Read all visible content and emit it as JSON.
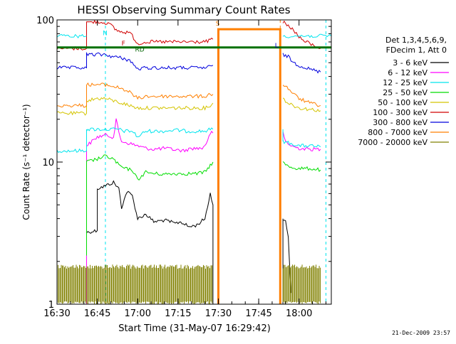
{
  "chart_data": {
    "type": "line",
    "title": "HESSI Observing Summary Count Rates",
    "xlabel": "Start Time (31-May-07 16:29:42)",
    "ylabel": "Count Rate (s⁻¹ detector⁻¹)",
    "y_scale": "log",
    "ylim": [
      1,
      100
    ],
    "xlim_minutes": [
      0,
      102
    ],
    "x_tick_labels": [
      "16:30",
      "16:45",
      "17:00",
      "17:15",
      "17:30",
      "17:45",
      "18:00"
    ],
    "x_tick_minutes": [
      0,
      15,
      30,
      45,
      60,
      75,
      90
    ],
    "y_tick_labels": [
      "1",
      "10",
      "100"
    ],
    "y_tick_values": [
      1,
      10,
      100
    ],
    "timestamp": "21-Dec-2009 23:57",
    "legend_header": [
      "Det 1,3,4,5,6,9,",
      "FDecim 1, Att 0"
    ],
    "flag_labels": [
      {
        "text": "N",
        "minute": 17,
        "level": 78,
        "color": "#00e5ee"
      },
      {
        "text": "F",
        "minute": 24,
        "level": 66,
        "color": "#c00000"
      },
      {
        "text": "RD",
        "minute": 29,
        "level": 60,
        "color": "#006400"
      },
      {
        "text": "S",
        "minute": 59,
        "level": 91,
        "color": "#ff7f00"
      },
      {
        "text": "L",
        "minute": 81,
        "level": 64,
        "color": "#0000cc"
      }
    ],
    "series": [
      {
        "name": "3 - 6 keV",
        "color": "#000000",
        "segments": [
          {
            "points": [
              [
                11,
                1
              ],
              [
                11,
                3.2
              ],
              [
                15,
                3.3
              ],
              [
                15,
                6.5
              ],
              [
                18,
                6.8
              ],
              [
                21,
                7.2
              ],
              [
                23,
                6.5
              ],
              [
                24,
                4.8
              ],
              [
                26,
                6.2
              ],
              [
                28,
                5.8
              ],
              [
                30,
                4.0
              ],
              [
                33,
                4.3
              ],
              [
                36,
                3.8
              ],
              [
                40,
                3.9
              ],
              [
                44,
                3.7
              ],
              [
                46,
                3.8
              ],
              [
                49,
                3.5
              ],
              [
                52,
                3.6
              ],
              [
                55,
                4.0
              ],
              [
                57,
                6.0
              ],
              [
                58,
                5.0
              ],
              [
                58,
                1
              ]
            ]
          },
          {
            "points": [
              [
                84,
                1
              ],
              [
                84,
                4.0
              ],
              [
                85,
                3.8
              ],
              [
                86,
                3.0
              ],
              [
                87,
                1.2
              ]
            ]
          }
        ]
      },
      {
        "name": "6 - 12 keV",
        "color": "#ff00ff",
        "segments": [
          {
            "points": [
              [
                11,
                1
              ],
              [
                11,
                13
              ],
              [
                15,
                15
              ],
              [
                18,
                15.5
              ],
              [
                21,
                15
              ],
              [
                22,
                20
              ],
              [
                23,
                16
              ],
              [
                24,
                14
              ],
              [
                27,
                13.5
              ],
              [
                30,
                13
              ],
              [
                33,
                12.5
              ],
              [
                36,
                12.3
              ],
              [
                40,
                12.5
              ],
              [
                44,
                12.2
              ],
              [
                47,
                12
              ],
              [
                50,
                12.5
              ],
              [
                54,
                12.5
              ],
              [
                56,
                14
              ],
              [
                57,
                16
              ],
              [
                58,
                16
              ]
            ]
          },
          {
            "points": [
              [
                84,
                16
              ],
              [
                85,
                14
              ],
              [
                87,
                13
              ],
              [
                90,
                12.5
              ],
              [
                94,
                12.3
              ],
              [
                98,
                12.3
              ]
            ]
          }
        ]
      },
      {
        "name": "12 - 25 keV",
        "color": "#00e5ee",
        "segments": [
          {
            "points": [
              [
                0,
                1
              ],
              [
                0,
                12
              ],
              [
                11,
                12
              ],
              [
                11,
                17
              ],
              [
                15,
                17
              ],
              [
                18,
                17
              ],
              [
                21,
                17
              ],
              [
                23,
                17
              ],
              [
                25,
                16.5
              ],
              [
                28,
                16.5
              ],
              [
                30,
                15
              ],
              [
                33,
                16.5
              ],
              [
                36,
                16.5
              ],
              [
                40,
                16.5
              ],
              [
                44,
                16.8
              ],
              [
                48,
                16.5
              ],
              [
                52,
                16.5
              ],
              [
                55,
                16.5
              ],
              [
                57,
                17
              ],
              [
                58,
                17
              ]
            ]
          },
          {
            "points": [
              [
                84,
                17
              ],
              [
                84,
                14
              ],
              [
                87,
                13.5
              ],
              [
                90,
                13
              ],
              [
                94,
                13
              ],
              [
                98,
                12.8
              ]
            ]
          }
        ]
      },
      {
        "name": "25 - 50 keV",
        "color": "#00dd00",
        "segments": [
          {
            "points": [
              [
                11,
                2.2
              ],
              [
                11,
                10
              ],
              [
                15,
                10.5
              ],
              [
                18,
                11
              ],
              [
                21,
                10.5
              ],
              [
                23,
                9.5
              ],
              [
                25,
                9
              ],
              [
                28,
                8.8
              ],
              [
                30,
                7.5
              ],
              [
                33,
                8.5
              ],
              [
                36,
                8.3
              ],
              [
                40,
                8.2
              ],
              [
                44,
                8.3
              ],
              [
                48,
                8.3
              ],
              [
                52,
                8.3
              ],
              [
                55,
                8.5
              ],
              [
                57,
                9.5
              ],
              [
                58,
                10
              ]
            ]
          },
          {
            "points": [
              [
                84,
                10
              ],
              [
                85,
                9.5
              ],
              [
                87,
                9.2
              ],
              [
                90,
                9
              ],
              [
                94,
                9
              ],
              [
                98,
                8.8
              ]
            ]
          }
        ]
      },
      {
        "name": "50 - 100 keV",
        "color": "#d4c400",
        "segments": [
          {
            "points": [
              [
                0,
                22
              ],
              [
                11,
                22
              ],
              [
                11,
                27
              ],
              [
                15,
                28
              ],
              [
                18,
                28
              ],
              [
                21,
                27
              ],
              [
                24,
                26
              ],
              [
                27,
                25
              ],
              [
                30,
                24
              ],
              [
                33,
                24
              ],
              [
                36,
                24
              ],
              [
                40,
                24
              ],
              [
                44,
                24
              ],
              [
                48,
                24
              ],
              [
                52,
                24
              ],
              [
                55,
                24
              ],
              [
                57,
                25
              ],
              [
                58,
                26
              ]
            ]
          },
          {
            "points": [
              [
                84,
                28
              ],
              [
                86,
                26
              ],
              [
                88,
                25
              ],
              [
                90,
                24
              ],
              [
                94,
                23.5
              ],
              [
                98,
                23
              ]
            ]
          }
        ]
      },
      {
        "name": "100 - 300 keV",
        "color": "#d00000",
        "segments": [
          {
            "points": [
              [
                0,
                63
              ],
              [
                11,
                63
              ],
              [
                11,
                96
              ],
              [
                15,
                97
              ],
              [
                19,
                95
              ],
              [
                22,
                85
              ],
              [
                24,
                82
              ],
              [
                27,
                82
              ],
              [
                30,
                68
              ],
              [
                33,
                70
              ],
              [
                36,
                70
              ],
              [
                40,
                70
              ],
              [
                44,
                70
              ],
              [
                48,
                70
              ],
              [
                52,
                70
              ],
              [
                55,
                70
              ],
              [
                57,
                72
              ],
              [
                58,
                73
              ]
            ]
          },
          {
            "points": [
              [
                84,
                97
              ],
              [
                86,
                90
              ],
              [
                88,
                85
              ],
              [
                90,
                75
              ],
              [
                94,
                68
              ],
              [
                98,
                63
              ]
            ]
          }
        ]
      },
      {
        "name": "300 - 800 keV",
        "color": "#0000dd",
        "segments": [
          {
            "points": [
              [
                0,
                46
              ],
              [
                11,
                46
              ],
              [
                11,
                57
              ],
              [
                15,
                57
              ],
              [
                18,
                57
              ],
              [
                21,
                55
              ],
              [
                24,
                54
              ],
              [
                27,
                52
              ],
              [
                30,
                45
              ],
              [
                33,
                46
              ],
              [
                36,
                46
              ],
              [
                40,
                46
              ],
              [
                44,
                46
              ],
              [
                48,
                46
              ],
              [
                52,
                46
              ],
              [
                55,
                46
              ],
              [
                57,
                47
              ],
              [
                58,
                48
              ]
            ]
          },
          {
            "points": [
              [
                84,
                57
              ],
              [
                86,
                55
              ],
              [
                88,
                50
              ],
              [
                90,
                48
              ],
              [
                94,
                45
              ],
              [
                98,
                43
              ]
            ]
          }
        ]
      },
      {
        "name": "800 - 7000 keV",
        "color": "#ff7f00",
        "segments": [
          {
            "points": [
              [
                0,
                25
              ],
              [
                11,
                25
              ],
              [
                11,
                35
              ],
              [
                15,
                35
              ],
              [
                18,
                35
              ],
              [
                21,
                34
              ],
              [
                24,
                33
              ],
              [
                27,
                31
              ],
              [
                30,
                28
              ],
              [
                33,
                29
              ],
              [
                36,
                29
              ],
              [
                40,
                29
              ],
              [
                44,
                29
              ],
              [
                48,
                29
              ],
              [
                52,
                29
              ],
              [
                55,
                29
              ],
              [
                57,
                30
              ],
              [
                58,
                30
              ]
            ]
          },
          {
            "points": [
              [
                60,
                1
              ],
              [
                60,
                86
              ],
              [
                83,
                86
              ],
              [
                83,
                1
              ]
            ]
          },
          {
            "points": [
              [
                84,
                35
              ],
              [
                86,
                33
              ],
              [
                88,
                30
              ],
              [
                90,
                28
              ],
              [
                94,
                26
              ],
              [
                98,
                25
              ]
            ]
          }
        ]
      },
      {
        "name": "7000 - 20000 keV",
        "color": "#808000",
        "segments": [
          {
            "points": [
              [
                0,
                1.5
              ],
              [
                58,
                1.5
              ]
            ]
          },
          {
            "points": [
              [
                84,
                1.5
              ],
              [
                98,
                1.5
              ]
            ]
          }
        ]
      },
      {
        "color": "#007000",
        "segments": [
          {
            "points": [
              [
                0,
                64
              ],
              [
                102,
                64
              ]
            ]
          }
        ]
      },
      {
        "color": "#00e5ee",
        "segments": [
          {
            "points": [
              [
                0,
                77
              ],
              [
                11,
                77
              ]
            ]
          },
          {
            "points": [
              [
                84,
                77
              ],
              [
                102,
                77
              ]
            ]
          }
        ]
      }
    ]
  }
}
